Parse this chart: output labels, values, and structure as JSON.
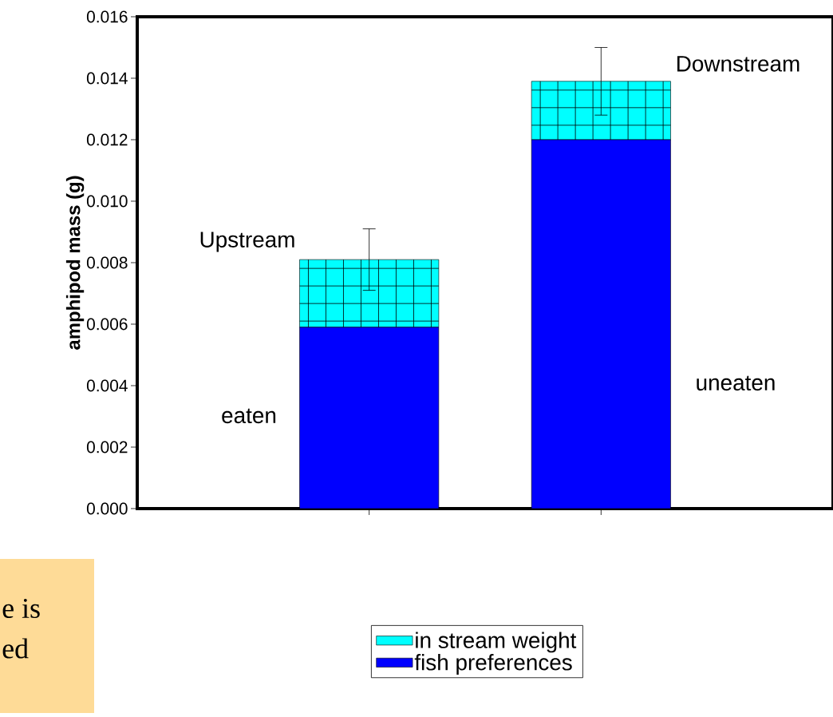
{
  "chart_data": {
    "type": "bar",
    "stacked": true,
    "ylabel": "amphipod mass (g)",
    "categories": [
      null,
      null
    ],
    "series": [
      {
        "name": "fish preferences",
        "color": "#0000ff",
        "values": [
          0.0059,
          0.012
        ]
      },
      {
        "name": "in stream weight",
        "color": "#00ffff",
        "values": [
          0.0022,
          0.0019
        ],
        "errors": [
          0.001,
          0.0011
        ]
      }
    ],
    "ylim": [
      0,
      0.016
    ],
    "yticks": [
      {
        "value": 0,
        "label": "0.000"
      },
      {
        "value": 0.002,
        "label": "0.002"
      },
      {
        "value": 0.004,
        "label": "0.004"
      },
      {
        "value": 0.006,
        "label": "0.006"
      },
      {
        "value": 0.008,
        "label": "0.008"
      },
      {
        "value": 0.01,
        "label": "0.010"
      },
      {
        "value": 0.012,
        "label": "0.012"
      },
      {
        "value": 0.014,
        "label": "0.014"
      },
      {
        "value": 0.016,
        "label": "0.016"
      }
    ],
    "tick_labels": "y",
    "legend": "bottom",
    "annotations": [
      "Upstream",
      "Downstream",
      "eaten",
      "uneaten",
      "e is",
      "ed"
    ]
  }
}
